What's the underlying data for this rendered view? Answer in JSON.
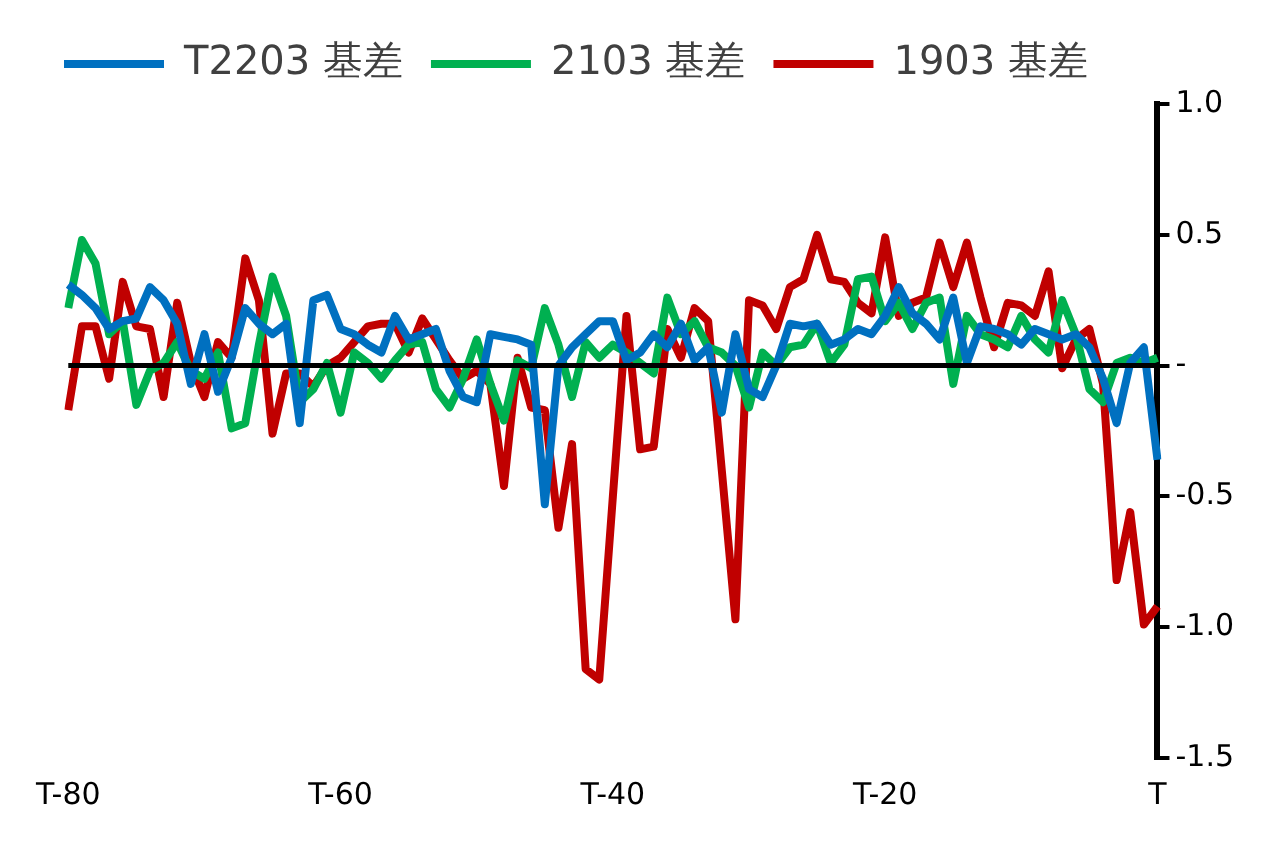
{
  "chart_data": {
    "type": "line",
    "categories": [
      "T-80",
      null,
      null,
      null,
      null,
      null,
      null,
      null,
      null,
      null,
      null,
      null,
      null,
      null,
      null,
      null,
      null,
      null,
      null,
      null,
      "T-60",
      null,
      null,
      null,
      null,
      null,
      null,
      null,
      null,
      null,
      null,
      null,
      null,
      null,
      null,
      null,
      null,
      null,
      null,
      null,
      "T-40",
      null,
      null,
      null,
      null,
      null,
      null,
      null,
      null,
      null,
      null,
      null,
      null,
      null,
      null,
      null,
      null,
      null,
      null,
      null,
      "T-20",
      null,
      null,
      null,
      null,
      null,
      null,
      null,
      null,
      null,
      null,
      null,
      null,
      null,
      null,
      null,
      null,
      null,
      null,
      null,
      "T"
    ],
    "series": [
      {
        "name": "T2203 基差",
        "color": "#0070c0",
        "values": [
          0.31,
          0.27,
          0.22,
          0.14,
          0.17,
          0.18,
          0.3,
          0.25,
          0.16,
          -0.07,
          0.12,
          -0.1,
          0.03,
          0.22,
          0.16,
          0.12,
          0.16,
          -0.22,
          0.25,
          0.27,
          0.14,
          0.12,
          0.08,
          0.05,
          0.19,
          0.1,
          0.12,
          0.14,
          -0.02,
          -0.12,
          -0.14,
          0.12,
          0.11,
          0.1,
          0.08,
          -0.53,
          0,
          0.07,
          0.12,
          0.17,
          0.17,
          0.02,
          0.05,
          0.12,
          0.07,
          0.16,
          0.02,
          0.07,
          -0.18,
          0.12,
          -0.09,
          -0.12,
          0,
          0.16,
          0.15,
          0.16,
          0.08,
          0.1,
          0.14,
          0.12,
          0.19,
          0.3,
          0.2,
          0.16,
          0.1,
          0.26,
          0.01,
          0.15,
          0.14,
          0.12,
          0.08,
          0.14,
          0.12,
          0.1,
          0.12,
          0.07,
          -0.05,
          -0.22,
          0.01,
          0.07,
          -0.36
        ]
      },
      {
        "name": "2103 基差",
        "color": "#00b050",
        "values": [
          0.22,
          0.48,
          0.39,
          0.12,
          0.17,
          -0.15,
          -0.02,
          0.01,
          0.09,
          -0.02,
          -0.05,
          0.05,
          -0.24,
          -0.22,
          0.08,
          0.34,
          0.19,
          -0.14,
          -0.09,
          0.01,
          -0.18,
          0.05,
          0.01,
          -0.05,
          0.02,
          0.08,
          0.09,
          -0.09,
          -0.16,
          -0.05,
          0.1,
          -0.07,
          -0.21,
          0.02,
          -0.01,
          0.22,
          0.08,
          -0.12,
          0.09,
          0.03,
          0.08,
          0.05,
          0.01,
          -0.03,
          0.26,
          0.12,
          0.17,
          0.07,
          0.05,
          0,
          -0.16,
          0.05,
          0,
          0.07,
          0.08,
          0.16,
          0.01,
          0.08,
          0.33,
          0.34,
          0.17,
          0.24,
          0.14,
          0.24,
          0.26,
          -0.07,
          0.19,
          0.12,
          0.1,
          0.07,
          0.19,
          0.1,
          0.05,
          0.25,
          0.12,
          -0.09,
          -0.14,
          0.01,
          0.03,
          0.01,
          0.03
        ]
      },
      {
        "name": "1903 基差",
        "color": "#c00000",
        "values": [
          -0.17,
          0.15,
          0.15,
          -0.05,
          0.32,
          0.15,
          0.14,
          -0.12,
          0.24,
          0.01,
          -0.12,
          0.09,
          0.03,
          0.41,
          0.25,
          -0.26,
          -0.03,
          -0.03,
          -0.08,
          0,
          0.03,
          0.09,
          0.15,
          0.16,
          0.16,
          0.05,
          0.18,
          0.1,
          0.02,
          -0.05,
          -0.02,
          -0.07,
          -0.46,
          0.03,
          -0.16,
          -0.17,
          -0.62,
          -0.3,
          -1.16,
          -1.2,
          -0.5,
          0.19,
          -0.32,
          -0.31,
          0.14,
          0.03,
          0.22,
          0.17,
          -0.4,
          -0.97,
          0.25,
          0.23,
          0.14,
          0.3,
          0.33,
          0.5,
          0.33,
          0.32,
          0.24,
          0.2,
          0.49,
          0.19,
          0.24,
          0.26,
          0.47,
          0.3,
          0.47,
          0.26,
          0.07,
          0.24,
          0.23,
          0.19,
          0.36,
          -0.01,
          0.1,
          0.14,
          -0.07,
          -0.82,
          -0.56,
          -0.99,
          -0.92
        ]
      }
    ],
    "ylim": [
      -1.5,
      1.0
    ],
    "yticks": [
      {
        "value": 1.0,
        "label": "1.0"
      },
      0.5,
      {
        "value": 0,
        "label": "-"
      },
      -0.5,
      {
        "value": -1.0,
        "label": "-1.0"
      },
      -1.5
    ],
    "ref_lines": [
      {
        "axis": "y",
        "value": 0,
        "color": "#000000"
      }
    ],
    "grid": false,
    "legend": "top",
    "marker": "none",
    "line_style": "solid"
  }
}
